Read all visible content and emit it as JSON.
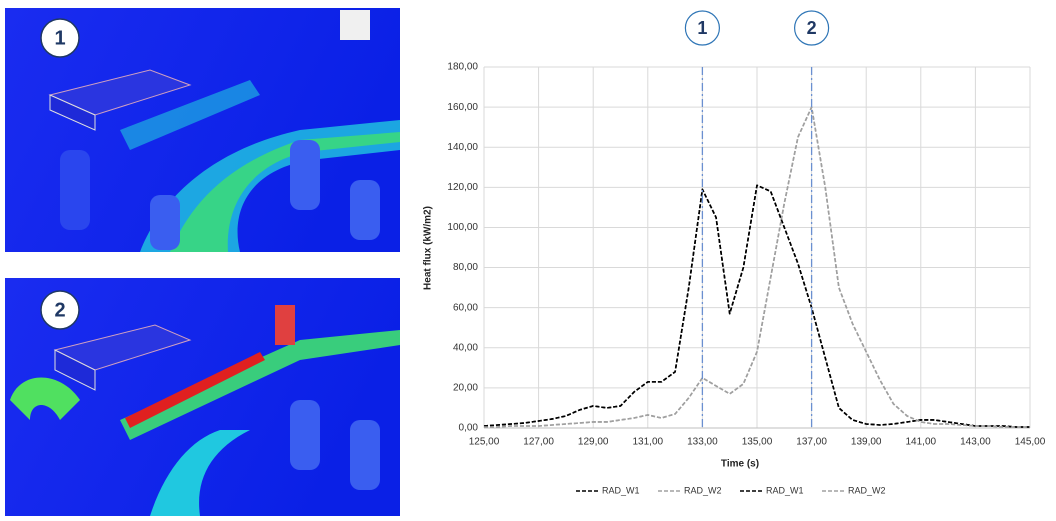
{
  "images": [
    {
      "badge": "1"
    },
    {
      "badge": "2"
    }
  ],
  "chart_data": {
    "type": "line",
    "x_label": "Time (s)",
    "y_label": "Heat flux (kW/m2)",
    "x": [
      125,
      125.5,
      126,
      126.5,
      127,
      127.5,
      128,
      128.5,
      129,
      129.5,
      130,
      130.5,
      131,
      131.5,
      132,
      132.5,
      133,
      133.5,
      134,
      134.5,
      135,
      135.5,
      136,
      136.5,
      137,
      137.5,
      138,
      138.5,
      139,
      139.5,
      140,
      140.5,
      141,
      141.5,
      142,
      142.5,
      143,
      143.5,
      144,
      144.5,
      145
    ],
    "series": [
      {
        "name": "RAD_W1",
        "color": "#000000",
        "values": [
          1,
          1.5,
          2,
          2.5,
          3.5,
          4.5,
          6,
          9,
          11,
          10,
          11,
          18,
          23,
          23,
          28,
          70,
          119,
          105,
          57,
          80,
          121,
          118,
          100,
          82,
          60,
          35,
          10,
          4,
          2,
          1.5,
          2,
          3,
          4,
          4,
          3,
          2,
          1,
          1,
          1,
          0.5,
          0.5
        ]
      },
      {
        "name": "RAD_W2",
        "color": "#a0a0a0",
        "values": [
          0.5,
          0.5,
          1,
          1,
          1,
          1.5,
          2,
          2.5,
          3,
          3,
          4,
          5,
          6.5,
          5,
          7,
          15,
          25,
          21,
          17,
          22,
          38,
          75,
          112,
          145,
          160,
          120,
          70,
          52,
          38,
          24,
          12,
          6,
          3,
          2,
          2,
          1.5,
          1,
          1,
          0.5,
          0.5,
          0.5
        ]
      },
      {
        "name": "RAD_W1",
        "color": "#000000",
        "values": [
          1,
          1.5,
          2,
          2.5,
          3.5,
          4.5,
          6,
          9,
          11,
          10,
          11,
          18,
          23,
          23,
          28,
          70,
          119,
          105,
          57,
          80,
          121,
          118,
          100,
          82,
          60,
          35,
          10,
          4,
          2,
          1.5,
          2,
          3,
          4,
          4,
          3,
          2,
          1,
          1,
          1,
          0.5,
          0.5
        ]
      },
      {
        "name": "RAD_W2",
        "color": "#a0a0a0",
        "values": [
          0.5,
          0.5,
          1,
          1,
          1,
          1.5,
          2,
          2.5,
          3,
          3,
          4,
          5,
          6.5,
          5,
          7,
          15,
          25,
          21,
          17,
          22,
          38,
          75,
          112,
          145,
          160,
          120,
          70,
          52,
          38,
          24,
          12,
          6,
          3,
          2,
          2,
          1.5,
          1,
          1,
          0.5,
          0.5,
          0.5
        ]
      }
    ],
    "markers": [
      {
        "x": 133,
        "label": "1"
      },
      {
        "x": 137,
        "label": "2"
      }
    ],
    "marker_color": "#6a8fd0",
    "xlim": [
      125,
      145
    ],
    "xticks": [
      {
        "value": 125,
        "label": "125,00"
      },
      {
        "value": 127,
        "label": "127,00"
      },
      {
        "value": 129,
        "label": "129,00"
      },
      {
        "value": 131,
        "label": "131,00"
      },
      {
        "value": 133,
        "label": "133,00"
      },
      {
        "value": 135,
        "label": "135,00"
      },
      {
        "value": 137,
        "label": "137,00"
      },
      {
        "value": 139,
        "label": "139,00"
      },
      {
        "value": 141,
        "label": "141,00"
      },
      {
        "value": 143,
        "label": "143,00"
      },
      {
        "value": 145,
        "label": "145,00"
      }
    ],
    "ylim": [
      0,
      180
    ],
    "yticks": [
      {
        "value": 0,
        "label": "0,00"
      },
      {
        "value": 20,
        "label": "20,00"
      },
      {
        "value": 40,
        "label": "40,00"
      },
      {
        "value": 60,
        "label": "60,00"
      },
      {
        "value": 80,
        "label": "80,00"
      },
      {
        "value": 100,
        "label": "100,00"
      },
      {
        "value": 120,
        "label": "120,00"
      },
      {
        "value": 140,
        "label": "140,00"
      },
      {
        "value": 160,
        "label": "160,00"
      },
      {
        "value": 180,
        "label": "180,00"
      }
    ],
    "grid": true,
    "legend": "bottom"
  }
}
